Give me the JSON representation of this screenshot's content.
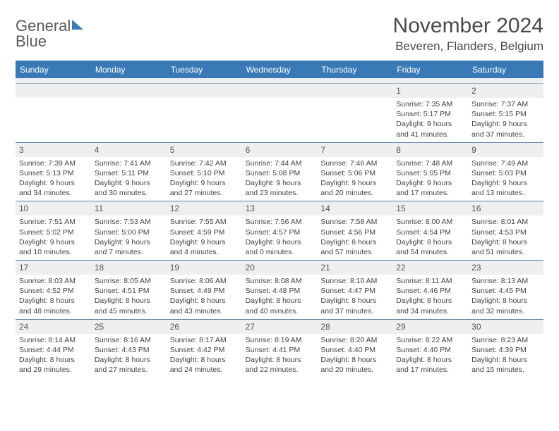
{
  "logo": {
    "line1": "General",
    "line2": "Blue"
  },
  "title": "November 2024",
  "location": "Beveren, Flanders, Belgium",
  "colors": {
    "header_bg": "#3879b6",
    "header_text": "#ffffff",
    "daynum_bg": "#edeff0",
    "border": "#5a7fa3",
    "logo_blue": "#3a7ab8",
    "text": "#444444"
  },
  "dow": [
    "Sunday",
    "Monday",
    "Tuesday",
    "Wednesday",
    "Thursday",
    "Friday",
    "Saturday"
  ],
  "weeks": [
    [
      {
        "day": "",
        "sunrise": "",
        "sunset": "",
        "daylight1": "",
        "daylight2": ""
      },
      {
        "day": "",
        "sunrise": "",
        "sunset": "",
        "daylight1": "",
        "daylight2": ""
      },
      {
        "day": "",
        "sunrise": "",
        "sunset": "",
        "daylight1": "",
        "daylight2": ""
      },
      {
        "day": "",
        "sunrise": "",
        "sunset": "",
        "daylight1": "",
        "daylight2": ""
      },
      {
        "day": "",
        "sunrise": "",
        "sunset": "",
        "daylight1": "",
        "daylight2": ""
      },
      {
        "day": "1",
        "sunrise": "Sunrise: 7:35 AM",
        "sunset": "Sunset: 5:17 PM",
        "daylight1": "Daylight: 9 hours",
        "daylight2": "and 41 minutes."
      },
      {
        "day": "2",
        "sunrise": "Sunrise: 7:37 AM",
        "sunset": "Sunset: 5:15 PM",
        "daylight1": "Daylight: 9 hours",
        "daylight2": "and 37 minutes."
      }
    ],
    [
      {
        "day": "3",
        "sunrise": "Sunrise: 7:39 AM",
        "sunset": "Sunset: 5:13 PM",
        "daylight1": "Daylight: 9 hours",
        "daylight2": "and 34 minutes."
      },
      {
        "day": "4",
        "sunrise": "Sunrise: 7:41 AM",
        "sunset": "Sunset: 5:11 PM",
        "daylight1": "Daylight: 9 hours",
        "daylight2": "and 30 minutes."
      },
      {
        "day": "5",
        "sunrise": "Sunrise: 7:42 AM",
        "sunset": "Sunset: 5:10 PM",
        "daylight1": "Daylight: 9 hours",
        "daylight2": "and 27 minutes."
      },
      {
        "day": "6",
        "sunrise": "Sunrise: 7:44 AM",
        "sunset": "Sunset: 5:08 PM",
        "daylight1": "Daylight: 9 hours",
        "daylight2": "and 23 minutes."
      },
      {
        "day": "7",
        "sunrise": "Sunrise: 7:46 AM",
        "sunset": "Sunset: 5:06 PM",
        "daylight1": "Daylight: 9 hours",
        "daylight2": "and 20 minutes."
      },
      {
        "day": "8",
        "sunrise": "Sunrise: 7:48 AM",
        "sunset": "Sunset: 5:05 PM",
        "daylight1": "Daylight: 9 hours",
        "daylight2": "and 17 minutes."
      },
      {
        "day": "9",
        "sunrise": "Sunrise: 7:49 AM",
        "sunset": "Sunset: 5:03 PM",
        "daylight1": "Daylight: 9 hours",
        "daylight2": "and 13 minutes."
      }
    ],
    [
      {
        "day": "10",
        "sunrise": "Sunrise: 7:51 AM",
        "sunset": "Sunset: 5:02 PM",
        "daylight1": "Daylight: 9 hours",
        "daylight2": "and 10 minutes."
      },
      {
        "day": "11",
        "sunrise": "Sunrise: 7:53 AM",
        "sunset": "Sunset: 5:00 PM",
        "daylight1": "Daylight: 9 hours",
        "daylight2": "and 7 minutes."
      },
      {
        "day": "12",
        "sunrise": "Sunrise: 7:55 AM",
        "sunset": "Sunset: 4:59 PM",
        "daylight1": "Daylight: 9 hours",
        "daylight2": "and 4 minutes."
      },
      {
        "day": "13",
        "sunrise": "Sunrise: 7:56 AM",
        "sunset": "Sunset: 4:57 PM",
        "daylight1": "Daylight: 9 hours",
        "daylight2": "and 0 minutes."
      },
      {
        "day": "14",
        "sunrise": "Sunrise: 7:58 AM",
        "sunset": "Sunset: 4:56 PM",
        "daylight1": "Daylight: 8 hours",
        "daylight2": "and 57 minutes."
      },
      {
        "day": "15",
        "sunrise": "Sunrise: 8:00 AM",
        "sunset": "Sunset: 4:54 PM",
        "daylight1": "Daylight: 8 hours",
        "daylight2": "and 54 minutes."
      },
      {
        "day": "16",
        "sunrise": "Sunrise: 8:01 AM",
        "sunset": "Sunset: 4:53 PM",
        "daylight1": "Daylight: 8 hours",
        "daylight2": "and 51 minutes."
      }
    ],
    [
      {
        "day": "17",
        "sunrise": "Sunrise: 8:03 AM",
        "sunset": "Sunset: 4:52 PM",
        "daylight1": "Daylight: 8 hours",
        "daylight2": "and 48 minutes."
      },
      {
        "day": "18",
        "sunrise": "Sunrise: 8:05 AM",
        "sunset": "Sunset: 4:51 PM",
        "daylight1": "Daylight: 8 hours",
        "daylight2": "and 45 minutes."
      },
      {
        "day": "19",
        "sunrise": "Sunrise: 8:06 AM",
        "sunset": "Sunset: 4:49 PM",
        "daylight1": "Daylight: 8 hours",
        "daylight2": "and 43 minutes."
      },
      {
        "day": "20",
        "sunrise": "Sunrise: 8:08 AM",
        "sunset": "Sunset: 4:48 PM",
        "daylight1": "Daylight: 8 hours",
        "daylight2": "and 40 minutes."
      },
      {
        "day": "21",
        "sunrise": "Sunrise: 8:10 AM",
        "sunset": "Sunset: 4:47 PM",
        "daylight1": "Daylight: 8 hours",
        "daylight2": "and 37 minutes."
      },
      {
        "day": "22",
        "sunrise": "Sunrise: 8:11 AM",
        "sunset": "Sunset: 4:46 PM",
        "daylight1": "Daylight: 8 hours",
        "daylight2": "and 34 minutes."
      },
      {
        "day": "23",
        "sunrise": "Sunrise: 8:13 AM",
        "sunset": "Sunset: 4:45 PM",
        "daylight1": "Daylight: 8 hours",
        "daylight2": "and 32 minutes."
      }
    ],
    [
      {
        "day": "24",
        "sunrise": "Sunrise: 8:14 AM",
        "sunset": "Sunset: 4:44 PM",
        "daylight1": "Daylight: 8 hours",
        "daylight2": "and 29 minutes."
      },
      {
        "day": "25",
        "sunrise": "Sunrise: 8:16 AM",
        "sunset": "Sunset: 4:43 PM",
        "daylight1": "Daylight: 8 hours",
        "daylight2": "and 27 minutes."
      },
      {
        "day": "26",
        "sunrise": "Sunrise: 8:17 AM",
        "sunset": "Sunset: 4:42 PM",
        "daylight1": "Daylight: 8 hours",
        "daylight2": "and 24 minutes."
      },
      {
        "day": "27",
        "sunrise": "Sunrise: 8:19 AM",
        "sunset": "Sunset: 4:41 PM",
        "daylight1": "Daylight: 8 hours",
        "daylight2": "and 22 minutes."
      },
      {
        "day": "28",
        "sunrise": "Sunrise: 8:20 AM",
        "sunset": "Sunset: 4:40 PM",
        "daylight1": "Daylight: 8 hours",
        "daylight2": "and 20 minutes."
      },
      {
        "day": "29",
        "sunrise": "Sunrise: 8:22 AM",
        "sunset": "Sunset: 4:40 PM",
        "daylight1": "Daylight: 8 hours",
        "daylight2": "and 17 minutes."
      },
      {
        "day": "30",
        "sunrise": "Sunrise: 8:23 AM",
        "sunset": "Sunset: 4:39 PM",
        "daylight1": "Daylight: 8 hours",
        "daylight2": "and 15 minutes."
      }
    ]
  ]
}
